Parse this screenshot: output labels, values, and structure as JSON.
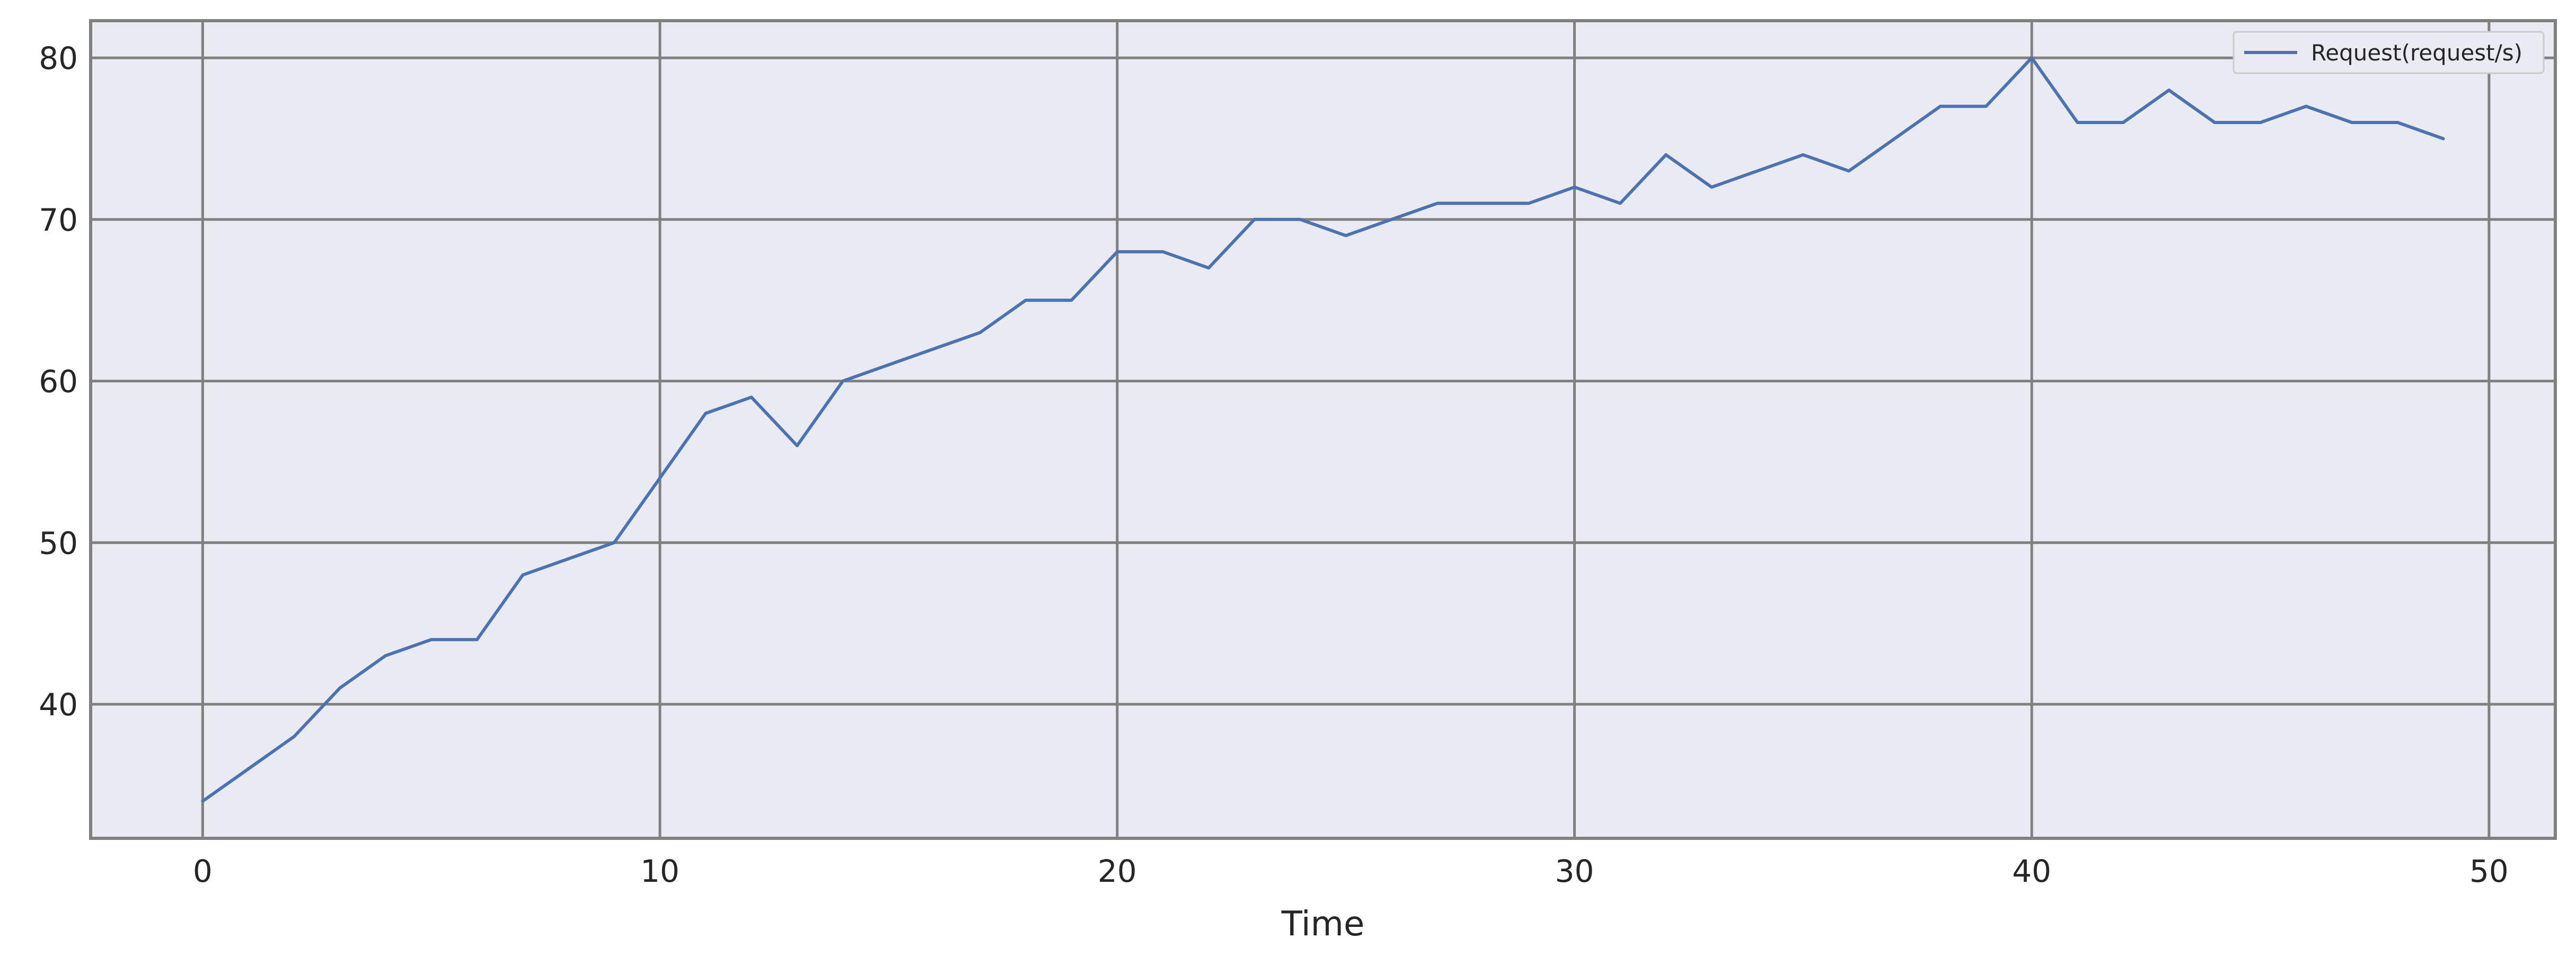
{
  "chart_data": {
    "type": "line",
    "title": "",
    "xlabel": "Time",
    "ylabel": "",
    "xlim": [
      -2.45,
      51.45
    ],
    "ylim": [
      31.7,
      82.3
    ],
    "x_ticks": [
      0,
      10,
      20,
      30,
      40,
      50
    ],
    "y_ticks": [
      40,
      50,
      60,
      70,
      80
    ],
    "x_tick_labels": [
      "0",
      "10",
      "20",
      "30",
      "40",
      "50"
    ],
    "y_tick_labels": [
      "40",
      "50",
      "60",
      "70",
      "80"
    ],
    "grid": true,
    "legend_position": "top-right",
    "series": [
      {
        "name": "Request(request/s)",
        "color": "#4c72b0",
        "x": [
          0,
          1,
          2,
          3,
          4,
          5,
          6,
          7,
          8,
          9,
          10,
          11,
          12,
          13,
          14,
          15,
          16,
          17,
          18,
          19,
          20,
          21,
          22,
          23,
          24,
          25,
          26,
          27,
          28,
          29,
          30,
          31,
          32,
          33,
          34,
          35,
          36,
          37,
          38,
          39,
          40,
          41,
          42,
          43,
          44,
          45,
          46,
          47,
          48,
          49
        ],
        "values": [
          34,
          36,
          38,
          41,
          43,
          44,
          44,
          48,
          49,
          50,
          54,
          58,
          59,
          56,
          60,
          61,
          62,
          63,
          65,
          65,
          68,
          68,
          67,
          70,
          70,
          69,
          70,
          71,
          71,
          71,
          72,
          71,
          74,
          72,
          73,
          74,
          73,
          75,
          77,
          77,
          80,
          76,
          76,
          78,
          76,
          76,
          77,
          76,
          76,
          75
        ]
      }
    ]
  },
  "colors": {
    "plot_background": "#eaeaf2",
    "grid": "#808080",
    "frame": "#808080",
    "line": "#4c72b0"
  }
}
